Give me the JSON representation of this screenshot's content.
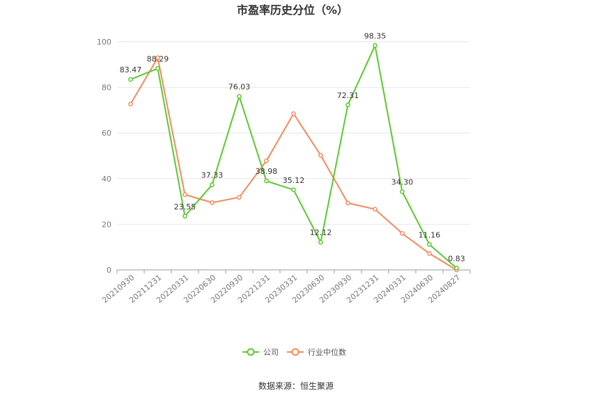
{
  "chart_data": {
    "type": "line",
    "title": "市盈率历史分位（%）",
    "categories": [
      "20210930",
      "20211231",
      "20220331",
      "20220630",
      "20220930",
      "20221231",
      "20230331",
      "20230630",
      "20230930",
      "20231231",
      "20240331",
      "20240630",
      "20240827"
    ],
    "ylim": [
      0,
      100
    ],
    "yticks": [
      0,
      20,
      40,
      60,
      80,
      100
    ],
    "grid": true,
    "legend_position": "bottom",
    "series": [
      {
        "name": "公司",
        "color": "#5cc72f",
        "values": [
          83.47,
          88.29,
          23.55,
          37.33,
          76.03,
          38.98,
          35.12,
          12.12,
          72.31,
          98.35,
          34.3,
          11.16,
          0.83
        ],
        "labels": [
          "83.47",
          "88.29",
          "23.55",
          "37.33",
          "76.03",
          "38.98",
          "35.12",
          "12.12",
          "72.31",
          "98.35",
          "34.30",
          "11.16",
          "0.83"
        ]
      },
      {
        "name": "行业中位数",
        "color": "#f28a5e",
        "values": [
          72.7,
          93.0,
          33.0,
          29.5,
          31.8,
          47.8,
          68.5,
          50.2,
          29.3,
          26.6,
          16.0,
          7.2,
          0.0
        ]
      }
    ]
  },
  "source": "数据来源：恒生聚源"
}
